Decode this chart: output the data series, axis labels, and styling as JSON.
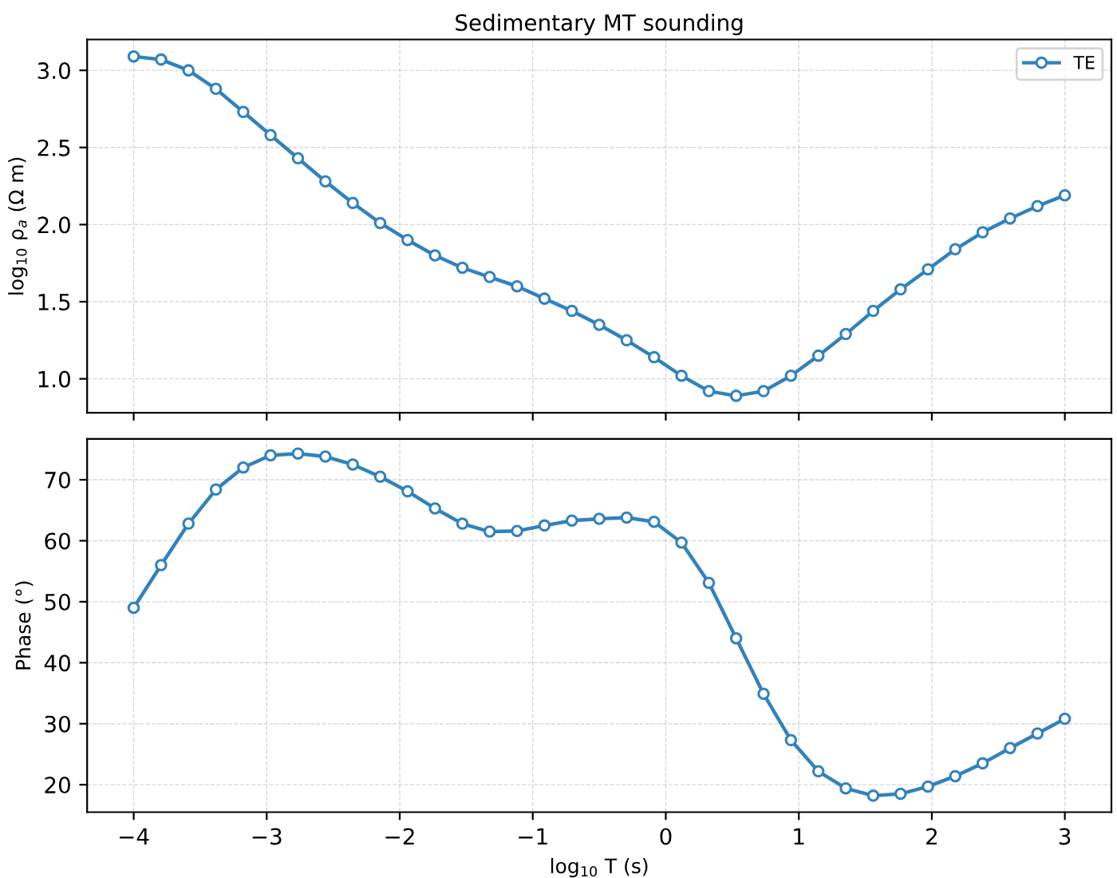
{
  "chart_data": [
    {
      "type": "line",
      "title": "Sedimentary MT sounding",
      "ylabel": "log$_{10}$ ρ$_{a}$ (Ω m)",
      "x": [
        -4,
        -3.794,
        -3.588,
        -3.382,
        -3.176,
        -2.971,
        -2.765,
        -2.559,
        -2.353,
        -2.147,
        -1.941,
        -1.735,
        -1.529,
        -1.324,
        -1.118,
        -0.912,
        -0.706,
        -0.5,
        -0.294,
        -0.088,
        0.118,
        0.324,
        0.529,
        0.735,
        0.941,
        1.147,
        1.353,
        1.559,
        1.765,
        1.971,
        2.176,
        2.382,
        2.588,
        2.794,
        3
      ],
      "series": [
        {
          "name": "TE",
          "color": "#3182bd",
          "values": [
            3.09,
            3.07,
            3.0,
            2.88,
            2.73,
            2.58,
            2.43,
            2.28,
            2.14,
            2.01,
            1.9,
            1.8,
            1.72,
            1.66,
            1.6,
            1.52,
            1.44,
            1.35,
            1.25,
            1.14,
            1.02,
            0.92,
            0.89,
            0.92,
            1.02,
            1.15,
            1.29,
            1.44,
            1.58,
            1.71,
            1.84,
            1.95,
            2.04,
            2.12,
            2.19
          ]
        }
      ],
      "xlim": [
        -4.35,
        3.35
      ],
      "xticks": [
        -4,
        -3,
        -2,
        -1,
        0,
        1,
        2,
        3
      ],
      "ylim": [
        0.78,
        3.2
      ],
      "yticks": [
        {
          "value": 1,
          "label": "1.0"
        },
        1.5,
        {
          "value": 2,
          "label": "2.0"
        },
        2.5,
        {
          "value": 3,
          "label": "3.0"
        }
      ],
      "tick_labels": "y",
      "grid": true,
      "legend": "top right",
      "marker": "circle",
      "line_style": "solid"
    },
    {
      "type": "line",
      "xlabel": "log$_{10}$ T (s)",
      "ylabel": "Phase (°)",
      "x": [
        -4,
        -3.794,
        -3.588,
        -3.382,
        -3.176,
        -2.971,
        -2.765,
        -2.559,
        -2.353,
        -2.147,
        -1.941,
        -1.735,
        -1.529,
        -1.324,
        -1.118,
        -0.912,
        -0.706,
        -0.5,
        -0.294,
        -0.088,
        0.118,
        0.324,
        0.529,
        0.735,
        0.941,
        1.147,
        1.353,
        1.559,
        1.765,
        1.971,
        2.176,
        2.382,
        2.588,
        2.794,
        3
      ],
      "series": [
        {
          "color": "#3182bd",
          "values": [
            49,
            56,
            62.8,
            68.4,
            72,
            74,
            74.3,
            73.8,
            72.5,
            70.5,
            68.1,
            65.3,
            62.8,
            61.5,
            61.6,
            62.5,
            63.3,
            63.6,
            63.8,
            63.1,
            59.7,
            53.1,
            44,
            34.9,
            27.3,
            22.2,
            19.4,
            18.2,
            18.5,
            19.7,
            21.4,
            23.5,
            26,
            28.4,
            30.8
          ]
        }
      ],
      "xlim": [
        -4.35,
        3.35
      ],
      "xticks": [
        {
          "value": -4,
          "label": "−4"
        },
        {
          "value": -3,
          "label": "−3"
        },
        {
          "value": -2,
          "label": "−2"
        },
        {
          "value": -1,
          "label": "−1"
        },
        0,
        1,
        2,
        3
      ],
      "ylim": [
        15.5,
        76.7
      ],
      "yticks": [
        20,
        30,
        40,
        50,
        60,
        70
      ],
      "grid": true,
      "marker": "circle",
      "line_style": "solid"
    }
  ]
}
